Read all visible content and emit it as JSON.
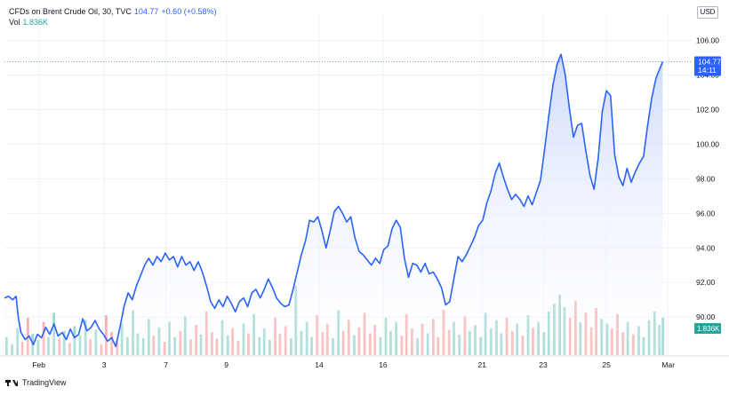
{
  "legend": {
    "symbol": "CFDs on Brent Crude Oil, 30, TVC",
    "last": "104.77",
    "change": "+0.60 (+0.58%)",
    "vol_label": "Vol",
    "vol_value": "1.836K"
  },
  "currency": "USD",
  "price_badge": {
    "price": "104.77",
    "countdown": "14:11"
  },
  "volume_badge": "1.836K",
  "brand": "TradingView",
  "colors": {
    "line": "#2962ff",
    "fill_top": "#c9d6fb",
    "vol_up": "#26a69a",
    "vol_down": "#ef5350",
    "grid": "#f0f3fa"
  },
  "chart_data": {
    "type": "line",
    "ylim": [
      87.8,
      106.8
    ],
    "y_ticks": [
      90,
      92,
      94,
      96,
      98,
      100,
      102,
      104,
      106
    ],
    "y_tick_labels": [
      "90.00",
      "92.00",
      "94.00",
      "96.00",
      "98.00",
      "100.00",
      "102.00",
      "104.00",
      "106.00"
    ],
    "xlim": [
      0,
      100
    ],
    "x_ticks": [
      {
        "label": "Feb",
        "x": 5
      },
      {
        "label": "3",
        "x": 14.5
      },
      {
        "label": "7",
        "x": 23.5
      },
      {
        "label": "9",
        "x": 32.3
      },
      {
        "label": "14",
        "x": 45.8
      },
      {
        "label": "16",
        "x": 55.1
      },
      {
        "label": "21",
        "x": 69.5
      },
      {
        "label": "23",
        "x": 78.4
      },
      {
        "label": "25",
        "x": 87.6
      },
      {
        "label": "Mar",
        "x": 96.6
      }
    ],
    "series": [
      {
        "points": [
          [
            0,
            91.1
          ],
          [
            0.6,
            91.2
          ],
          [
            1.2,
            91.0
          ],
          [
            1.7,
            91.2
          ],
          [
            2.0,
            90.0
          ],
          [
            2.4,
            89.1
          ],
          [
            3.0,
            88.7
          ],
          [
            3.6,
            88.9
          ],
          [
            4.2,
            88.4
          ],
          [
            4.8,
            89.0
          ],
          [
            5.4,
            88.8
          ],
          [
            6.0,
            89.4
          ],
          [
            6.6,
            89.0
          ],
          [
            7.2,
            89.6
          ],
          [
            7.8,
            88.9
          ],
          [
            8.4,
            89.1
          ],
          [
            9.0,
            88.7
          ],
          [
            9.6,
            89.3
          ],
          [
            10.2,
            88.8
          ],
          [
            10.8,
            89.0
          ],
          [
            11.4,
            89.9
          ],
          [
            12.0,
            89.2
          ],
          [
            12.6,
            89.4
          ],
          [
            13.2,
            89.8
          ],
          [
            13.8,
            89.3
          ],
          [
            14.4,
            89.0
          ],
          [
            15.0,
            88.6
          ],
          [
            15.6,
            88.8
          ],
          [
            16.2,
            88.3
          ],
          [
            16.8,
            89.4
          ],
          [
            17.4,
            90.6
          ],
          [
            18.0,
            91.4
          ],
          [
            18.6,
            91.0
          ],
          [
            19.2,
            91.8
          ],
          [
            19.8,
            92.4
          ],
          [
            20.4,
            93.0
          ],
          [
            21.0,
            93.4
          ],
          [
            21.6,
            93.0
          ],
          [
            22.2,
            93.5
          ],
          [
            22.8,
            93.2
          ],
          [
            23.4,
            93.7
          ],
          [
            24.0,
            93.3
          ],
          [
            24.6,
            93.5
          ],
          [
            25.2,
            92.9
          ],
          [
            25.8,
            93.5
          ],
          [
            26.4,
            93.0
          ],
          [
            27.0,
            93.2
          ],
          [
            27.6,
            92.7
          ],
          [
            28.2,
            93.2
          ],
          [
            28.8,
            92.6
          ],
          [
            29.4,
            91.8
          ],
          [
            30.0,
            90.9
          ],
          [
            30.6,
            90.5
          ],
          [
            31.2,
            91.0
          ],
          [
            31.8,
            90.6
          ],
          [
            32.4,
            91.2
          ],
          [
            33.0,
            90.8
          ],
          [
            33.6,
            90.3
          ],
          [
            34.2,
            90.9
          ],
          [
            34.8,
            91.1
          ],
          [
            35.4,
            90.6
          ],
          [
            36.0,
            91.4
          ],
          [
            36.6,
            91.6
          ],
          [
            37.2,
            91.1
          ],
          [
            37.8,
            91.6
          ],
          [
            38.4,
            92.2
          ],
          [
            39.0,
            91.7
          ],
          [
            39.6,
            91.1
          ],
          [
            40.2,
            90.8
          ],
          [
            40.8,
            90.6
          ],
          [
            41.4,
            90.7
          ],
          [
            42.0,
            91.6
          ],
          [
            42.6,
            92.6
          ],
          [
            43.2,
            93.6
          ],
          [
            43.8,
            94.4
          ],
          [
            44.4,
            95.6
          ],
          [
            45.0,
            95.5
          ],
          [
            45.6,
            95.8
          ],
          [
            46.2,
            95.0
          ],
          [
            46.8,
            94.0
          ],
          [
            47.4,
            95.0
          ],
          [
            48.0,
            96.1
          ],
          [
            48.6,
            96.4
          ],
          [
            49.2,
            96.0
          ],
          [
            49.8,
            95.5
          ],
          [
            50.4,
            95.8
          ],
          [
            51.0,
            94.6
          ],
          [
            51.6,
            93.8
          ],
          [
            52.2,
            93.6
          ],
          [
            52.8,
            93.3
          ],
          [
            53.4,
            93.0
          ],
          [
            54.0,
            93.4
          ],
          [
            54.6,
            93.1
          ],
          [
            55.2,
            93.9
          ],
          [
            55.8,
            94.1
          ],
          [
            56.4,
            95.1
          ],
          [
            57.0,
            95.6
          ],
          [
            57.6,
            95.2
          ],
          [
            58.2,
            93.4
          ],
          [
            58.8,
            92.3
          ],
          [
            59.4,
            93.1
          ],
          [
            60.0,
            93.0
          ],
          [
            60.6,
            92.6
          ],
          [
            61.2,
            93.1
          ],
          [
            61.8,
            92.5
          ],
          [
            62.4,
            92.6
          ],
          [
            63.0,
            92.2
          ],
          [
            63.6,
            91.7
          ],
          [
            64.2,
            90.7
          ],
          [
            64.8,
            90.9
          ],
          [
            65.4,
            92.2
          ],
          [
            66.0,
            93.5
          ],
          [
            66.6,
            93.2
          ],
          [
            67.2,
            93.6
          ],
          [
            67.8,
            94.1
          ],
          [
            68.4,
            94.6
          ],
          [
            69.0,
            95.3
          ],
          [
            69.6,
            95.6
          ],
          [
            70.2,
            96.6
          ],
          [
            70.8,
            97.3
          ],
          [
            71.4,
            98.3
          ],
          [
            72.0,
            98.9
          ],
          [
            72.6,
            98.1
          ],
          [
            73.2,
            97.4
          ],
          [
            73.8,
            96.8
          ],
          [
            74.4,
            97.1
          ],
          [
            75.0,
            96.8
          ],
          [
            75.6,
            96.4
          ],
          [
            76.2,
            97.0
          ],
          [
            76.8,
            96.5
          ],
          [
            77.4,
            97.2
          ],
          [
            78.0,
            97.9
          ],
          [
            78.6,
            99.7
          ],
          [
            79.2,
            101.6
          ],
          [
            79.8,
            103.4
          ],
          [
            80.4,
            104.6
          ],
          [
            81.0,
            105.2
          ],
          [
            81.6,
            104.0
          ],
          [
            82.2,
            102.1
          ],
          [
            82.8,
            100.4
          ],
          [
            83.4,
            101.1
          ],
          [
            84.0,
            101.2
          ],
          [
            84.6,
            99.6
          ],
          [
            85.2,
            98.2
          ],
          [
            85.8,
            97.4
          ],
          [
            86.4,
            99.2
          ],
          [
            87.0,
            101.9
          ],
          [
            87.6,
            103.1
          ],
          [
            88.2,
            102.8
          ],
          [
            88.8,
            99.4
          ],
          [
            89.4,
            98.1
          ],
          [
            90.0,
            97.6
          ],
          [
            90.6,
            98.6
          ],
          [
            91.2,
            97.8
          ],
          [
            91.8,
            98.4
          ],
          [
            92.4,
            98.9
          ],
          [
            93.0,
            99.3
          ],
          [
            93.6,
            101.1
          ],
          [
            94.2,
            102.7
          ],
          [
            94.8,
            103.8
          ],
          [
            95.4,
            104.4
          ],
          [
            95.8,
            104.77
          ]
        ]
      }
    ],
    "volume": {
      "label": "Vol",
      "last": "1.836K",
      "values": [
        [
          0.3,
          0.3
        ],
        [
          1.1,
          0.18
        ],
        [
          1.9,
          0.45
        ],
        [
          2.6,
          0.22
        ],
        [
          3.4,
          0.62
        ],
        [
          4.1,
          0.35
        ],
        [
          4.9,
          0.25
        ],
        [
          5.7,
          0.55
        ],
        [
          6.4,
          0.3
        ],
        [
          7.2,
          0.7
        ],
        [
          8.0,
          0.28
        ],
        [
          8.7,
          0.4
        ],
        [
          9.5,
          0.2
        ],
        [
          10.2,
          0.48
        ],
        [
          11.0,
          0.33
        ],
        [
          11.8,
          0.58
        ],
        [
          12.5,
          0.26
        ],
        [
          13.3,
          0.42
        ],
        [
          14.1,
          0.18
        ],
        [
          14.8,
          0.66
        ],
        [
          15.6,
          0.38
        ],
        [
          16.4,
          0.24
        ],
        [
          17.1,
          0.52
        ],
        [
          17.9,
          0.3
        ],
        [
          18.7,
          0.74
        ],
        [
          19.4,
          0.36
        ],
        [
          20.2,
          0.28
        ],
        [
          21.0,
          0.6
        ],
        [
          21.7,
          0.32
        ],
        [
          22.5,
          0.46
        ],
        [
          23.3,
          0.22
        ],
        [
          24.0,
          0.55
        ],
        [
          24.8,
          0.3
        ],
        [
          25.6,
          0.4
        ],
        [
          26.3,
          0.64
        ],
        [
          27.1,
          0.26
        ],
        [
          27.9,
          0.5
        ],
        [
          28.6,
          0.34
        ],
        [
          29.4,
          0.72
        ],
        [
          30.2,
          0.38
        ],
        [
          30.9,
          0.27
        ],
        [
          31.7,
          0.58
        ],
        [
          32.5,
          0.33
        ],
        [
          33.2,
          0.45
        ],
        [
          34.0,
          0.24
        ],
        [
          34.8,
          0.52
        ],
        [
          35.5,
          0.36
        ],
        [
          36.3,
          0.68
        ],
        [
          37.1,
          0.3
        ],
        [
          37.8,
          0.44
        ],
        [
          38.6,
          0.25
        ],
        [
          39.4,
          0.62
        ],
        [
          40.1,
          0.35
        ],
        [
          40.9,
          0.48
        ],
        [
          41.7,
          0.28
        ],
        [
          42.4,
          1.15
        ],
        [
          43.2,
          0.4
        ],
        [
          44.0,
          0.55
        ],
        [
          44.7,
          0.3
        ],
        [
          45.5,
          0.66
        ],
        [
          46.3,
          0.38
        ],
        [
          47.0,
          0.52
        ],
        [
          47.8,
          0.28
        ],
        [
          48.6,
          0.74
        ],
        [
          49.3,
          0.4
        ],
        [
          50.1,
          0.58
        ],
        [
          50.9,
          0.33
        ],
        [
          51.6,
          0.46
        ],
        [
          52.4,
          0.7
        ],
        [
          53.2,
          0.36
        ],
        [
          53.9,
          0.5
        ],
        [
          54.7,
          0.3
        ],
        [
          55.5,
          0.62
        ],
        [
          56.2,
          0.4
        ],
        [
          57.0,
          0.55
        ],
        [
          57.8,
          0.32
        ],
        [
          58.5,
          0.68
        ],
        [
          59.3,
          0.44
        ],
        [
          60.1,
          0.28
        ],
        [
          60.8,
          0.52
        ],
        [
          61.6,
          0.36
        ],
        [
          62.4,
          0.6
        ],
        [
          63.1,
          0.3
        ],
        [
          63.9,
          0.75
        ],
        [
          64.7,
          0.42
        ],
        [
          65.4,
          0.55
        ],
        [
          66.2,
          0.34
        ],
        [
          67.0,
          0.64
        ],
        [
          67.7,
          0.4
        ],
        [
          68.5,
          0.5
        ],
        [
          69.3,
          0.3
        ],
        [
          70.0,
          0.7
        ],
        [
          70.8,
          0.44
        ],
        [
          71.6,
          0.58
        ],
        [
          72.3,
          0.36
        ],
        [
          73.1,
          0.62
        ],
        [
          73.9,
          0.4
        ],
        [
          74.6,
          0.52
        ],
        [
          75.4,
          0.32
        ],
        [
          76.2,
          0.66
        ],
        [
          76.9,
          0.45
        ],
        [
          77.7,
          0.55
        ],
        [
          78.5,
          0.38
        ],
        [
          79.2,
          0.72
        ],
        [
          80.0,
          0.85
        ],
        [
          80.8,
          1.0
        ],
        [
          81.5,
          0.8
        ],
        [
          82.3,
          0.62
        ],
        [
          83.1,
          0.9
        ],
        [
          83.8,
          0.54
        ],
        [
          84.6,
          0.7
        ],
        [
          85.4,
          0.46
        ],
        [
          86.1,
          0.78
        ],
        [
          86.9,
          0.6
        ],
        [
          87.7,
          0.52
        ],
        [
          88.4,
          0.44
        ],
        [
          89.2,
          0.68
        ],
        [
          90.0,
          0.38
        ],
        [
          90.7,
          0.55
        ],
        [
          91.5,
          0.34
        ],
        [
          92.3,
          0.48
        ],
        [
          93.0,
          0.3
        ],
        [
          93.8,
          0.58
        ],
        [
          94.6,
          0.72
        ],
        [
          95.3,
          0.5
        ],
        [
          95.8,
          0.62
        ]
      ]
    }
  }
}
